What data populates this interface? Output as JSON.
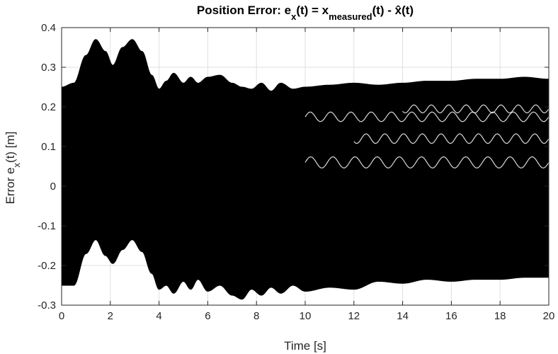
{
  "chart_data": {
    "type": "line",
    "title": {
      "prefix": "Position Error: e",
      "sub1": "x",
      "mid1": "(t) = x",
      "sub2": "measured",
      "suffix": "(t) - x̂(t)"
    },
    "xlabel": "Time [s]",
    "ylabel": {
      "prefix": "Error e",
      "sub": "x",
      "suffix": "(t) [m]"
    },
    "xlim": [
      0,
      20
    ],
    "ylim": [
      -0.3,
      0.4
    ],
    "xticks": [
      0,
      2,
      4,
      6,
      8,
      10,
      12,
      14,
      16,
      18,
      20
    ],
    "yticks": [
      -0.3,
      -0.2,
      -0.1,
      0,
      0.1,
      0.2,
      0.3,
      0.4
    ],
    "xtick_labels": [
      "0",
      "2",
      "4",
      "6",
      "8",
      "10",
      "12",
      "14",
      "16",
      "18",
      "20"
    ],
    "ytick_labels": [
      "-0.3",
      "-0.2",
      "-0.1",
      "0",
      "0.1",
      "0.2",
      "0.3",
      "0.4"
    ],
    "grid": true,
    "series_color": "#000000",
    "envelope": {
      "x": [
        0,
        0.5,
        1.0,
        1.4,
        1.8,
        2.1,
        2.5,
        2.9,
        3.3,
        3.7,
        4.0,
        4.3,
        4.6,
        5.0,
        5.3,
        5.6,
        6.0,
        6.5,
        7.0,
        7.4,
        7.8,
        8.2,
        8.6,
        9.0,
        9.5,
        10.0,
        11,
        12,
        13,
        14,
        15,
        16,
        17,
        18,
        19,
        20
      ],
      "upper": [
        0.25,
        0.26,
        0.33,
        0.37,
        0.34,
        0.305,
        0.35,
        0.37,
        0.34,
        0.28,
        0.245,
        0.265,
        0.285,
        0.26,
        0.275,
        0.26,
        0.275,
        0.28,
        0.26,
        0.25,
        0.245,
        0.26,
        0.24,
        0.26,
        0.245,
        0.25,
        0.255,
        0.26,
        0.255,
        0.26,
        0.265,
        0.265,
        0.27,
        0.27,
        0.275,
        0.27
      ],
      "lower": [
        -0.25,
        -0.25,
        -0.17,
        -0.135,
        -0.175,
        -0.195,
        -0.16,
        -0.135,
        -0.165,
        -0.22,
        -0.26,
        -0.25,
        -0.27,
        -0.24,
        -0.26,
        -0.235,
        -0.265,
        -0.25,
        -0.275,
        -0.285,
        -0.26,
        -0.275,
        -0.255,
        -0.27,
        -0.25,
        -0.265,
        -0.255,
        -0.26,
        -0.24,
        -0.245,
        -0.235,
        -0.24,
        -0.235,
        -0.235,
        -0.23,
        -0.23
      ]
    }
  }
}
